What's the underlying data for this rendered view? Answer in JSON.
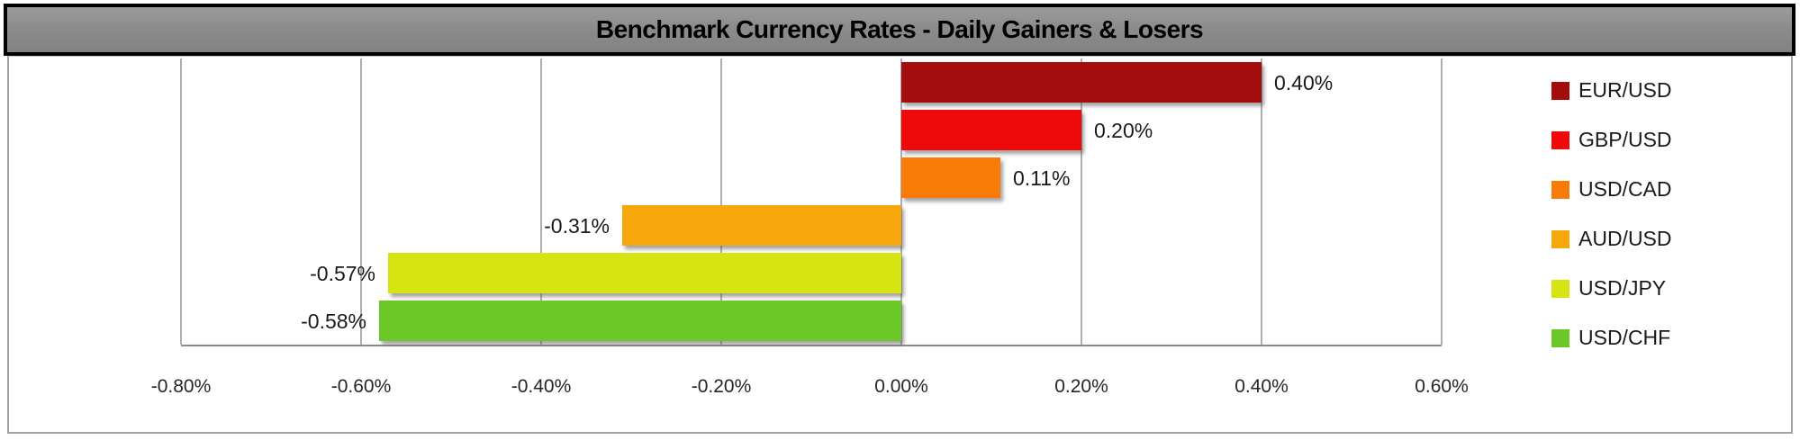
{
  "title": "Benchmark Currency Rates - Daily Gainers & Losers",
  "chart_data": {
    "type": "bar",
    "orientation": "horizontal",
    "title": "Benchmark Currency Rates - Daily Gainers & Losers",
    "categories": [
      "EUR/USD",
      "GBP/USD",
      "USD/CAD",
      "AUD/USD",
      "USD/JPY",
      "USD/CHF"
    ],
    "values": [
      0.4,
      0.2,
      0.11,
      -0.31,
      -0.57,
      -0.58
    ],
    "value_labels": [
      "0.40%",
      "0.20%",
      "0.11%",
      "-0.31%",
      "-0.57%",
      "-0.58%"
    ],
    "series_colors": [
      "#a40d0d",
      "#ee0a0a",
      "#f87a07",
      "#f6a70b",
      "#d6e412",
      "#6cc729"
    ],
    "xlim": [
      -0.8,
      0.6
    ],
    "tick_step": 0.2,
    "x_tick_labels": [
      "-0.80%",
      "-0.60%",
      "-0.40%",
      "-0.20%",
      "0.00%",
      "0.20%",
      "0.40%",
      "0.60%"
    ],
    "grid": true,
    "legend_position": "right",
    "xlabel": "",
    "ylabel": ""
  },
  "styles": {
    "banner_background": "#8c8c8c",
    "banner_border": "#000000",
    "gridline_color": "#aeaeae",
    "axis_line_color": "#8c8c8c",
    "label_color": "#1a1a1a",
    "chart_border_color": "#a3a3a3"
  }
}
